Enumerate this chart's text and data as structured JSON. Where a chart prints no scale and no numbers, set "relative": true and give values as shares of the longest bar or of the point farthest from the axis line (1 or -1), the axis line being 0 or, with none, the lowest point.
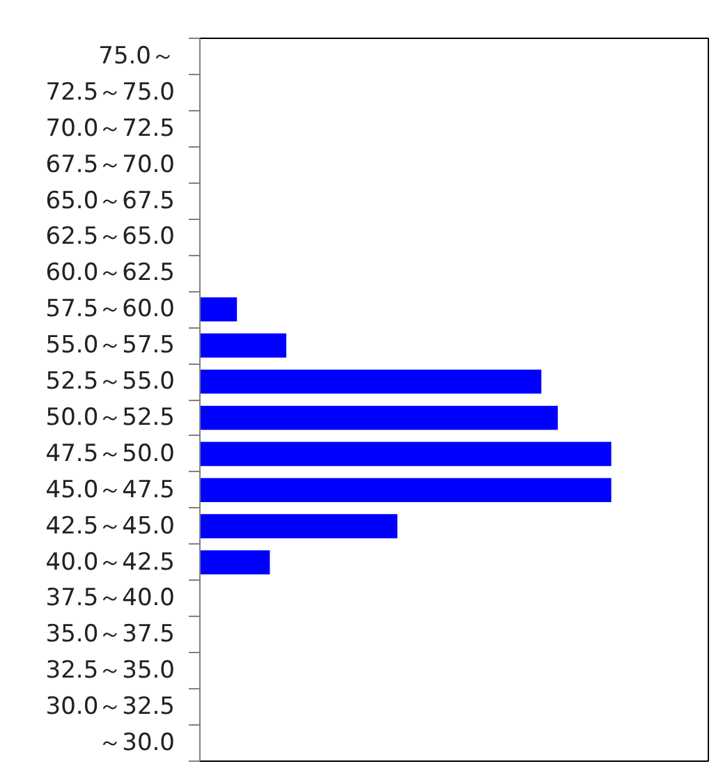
{
  "chart_data": {
    "type": "bar",
    "orientation": "horizontal",
    "relative": true,
    "categories": [
      "75.0～",
      "72.5～75.0",
      "70.0～72.5",
      "67.5～70.0",
      "65.0～67.5",
      "62.5～65.0",
      "60.0～62.5",
      "57.5～60.0",
      "55.0～57.5",
      "52.5～55.0",
      "50.0～52.5",
      "47.5～50.0",
      "45.0～47.5",
      "42.5～45.0",
      "40.0～42.5",
      "37.5～40.0",
      "35.0～37.5",
      "32.5～35.0",
      "30.0～32.5",
      "～30.0"
    ],
    "values": [
      0,
      0,
      0,
      0,
      0,
      0,
      0,
      0.09,
      0.21,
      0.83,
      0.87,
      1,
      1,
      0.48,
      0.17,
      0,
      0,
      0,
      0,
      0
    ],
    "color": "#0000ff",
    "grid": false
  }
}
